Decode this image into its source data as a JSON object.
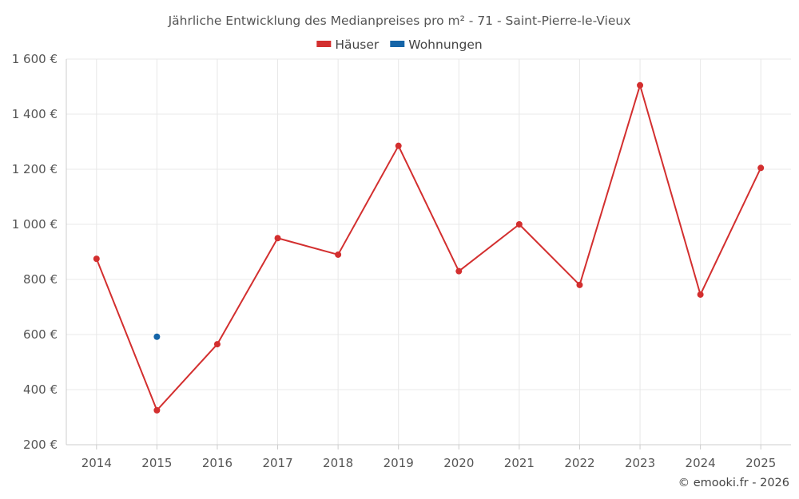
{
  "chart_data": {
    "type": "line",
    "title": "Jährliche Entwicklung des Medianpreises pro m² - 71 - Saint-Pierre-le-Vieux",
    "categories": [
      "2014",
      "2015",
      "2016",
      "2017",
      "2018",
      "2019",
      "2020",
      "2021",
      "2022",
      "2023",
      "2024",
      "2025"
    ],
    "series": [
      {
        "name": "Häuser",
        "color": "#d32f2f",
        "values": [
          875,
          325,
          565,
          950,
          890,
          1285,
          830,
          1000,
          780,
          1505,
          745,
          1205
        ]
      },
      {
        "name": "Wohnungen",
        "color": "#1565a8",
        "values": [
          null,
          592,
          null,
          null,
          null,
          null,
          null,
          null,
          null,
          null,
          null,
          null
        ]
      }
    ],
    "ylim": [
      200,
      1600
    ],
    "yticks": [
      200,
      400,
      600,
      800,
      1000,
      1200,
      1400,
      1600
    ],
    "ytick_labels": [
      "200 €",
      "400 €",
      "600 €",
      "800 €",
      "1 000 €",
      "1 200 €",
      "1 400 €",
      "1 600 €"
    ],
    "grid": true,
    "legend_position": "top-center"
  },
  "credit": "© emooki.fr - 2026"
}
